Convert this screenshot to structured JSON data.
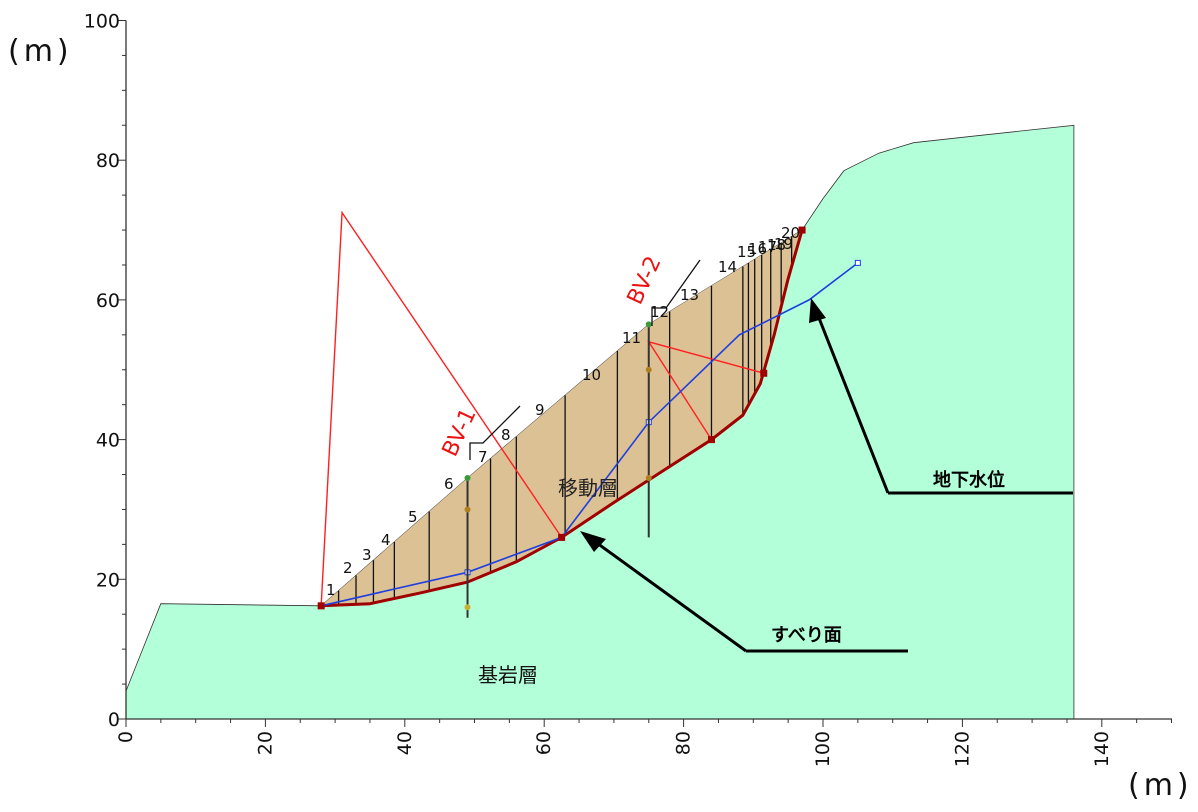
{
  "units": {
    "y_unit": "(m)",
    "x_unit": "(m)"
  },
  "axes": {
    "x_ticks": [
      "0",
      "20",
      "40",
      "60",
      "80",
      "100",
      "120",
      "140"
    ],
    "y_ticks": [
      "0",
      "20",
      "40",
      "60",
      "80",
      "100"
    ],
    "x_range": [
      0,
      150
    ],
    "y_range": [
      0,
      100
    ]
  },
  "boreholes": [
    {
      "label": "BV-1",
      "x": 49,
      "top": 34.5,
      "bottom": 14.5
    },
    {
      "label": "BV-2",
      "x": 75,
      "top": 56.5,
      "bottom": 26
    }
  ],
  "slices": [
    "1",
    "2",
    "3",
    "4",
    "5",
    "6",
    "7",
    "8",
    "9",
    "10",
    "11",
    "12",
    "13",
    "14",
    "15",
    "16",
    "17",
    "18",
    "19",
    "20"
  ],
  "labels": {
    "moving_layer": "移動層",
    "bedrock_layer": "基岩層",
    "slip_surface": "すべり面",
    "groundwater_level": "地下水位"
  },
  "colors": {
    "bedrock_fill": "#b3ffd9",
    "moving_layer_fill": "#dcc195",
    "slip_surface": "#a00000",
    "groundwater": "#1f3fe0",
    "construction_lines": "#ff2020",
    "borehole_label": "#ee1111"
  },
  "profiles": {
    "ground_surface": [
      [
        0,
        4
      ],
      [
        5,
        16.5
      ],
      [
        28,
        16.2
      ],
      [
        49,
        34.5
      ],
      [
        75,
        56.5
      ],
      [
        97,
        70
      ],
      [
        100,
        74.5
      ],
      [
        103,
        78.5
      ],
      [
        108,
        81
      ],
      [
        113,
        82.5
      ],
      [
        122,
        83.5
      ],
      [
        136,
        85
      ]
    ],
    "slip_surface": [
      [
        28,
        16.2
      ],
      [
        35,
        16.5
      ],
      [
        42,
        18
      ],
      [
        49,
        19.6
      ],
      [
        56,
        22.5
      ],
      [
        62.5,
        26
      ],
      [
        70,
        31
      ],
      [
        77,
        35.5
      ],
      [
        84,
        40
      ],
      [
        88.5,
        43.5
      ],
      [
        91,
        48
      ],
      [
        93,
        55
      ],
      [
        95,
        63
      ],
      [
        97,
        70
      ]
    ],
    "groundwater": [
      [
        28,
        16.2
      ],
      [
        49,
        21
      ],
      [
        62.5,
        26
      ],
      [
        75,
        42.5
      ],
      [
        88,
        55
      ],
      [
        98,
        60
      ],
      [
        105,
        65.3
      ]
    ]
  }
}
